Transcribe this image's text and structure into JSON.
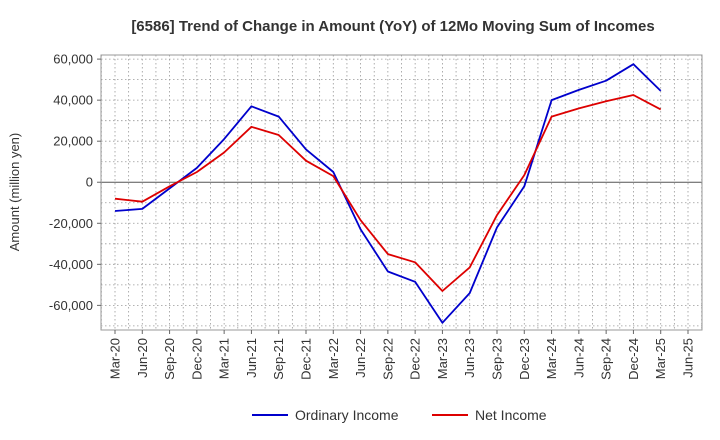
{
  "chart_data": {
    "type": "line",
    "title": "[6586]  Trend of Change in Amount (YoY) of 12Mo Moving Sum of Incomes",
    "ylabel": "Amount (million yen)",
    "xlabel": "",
    "ylim": [
      -72000,
      62000
    ],
    "yticks": [
      60000,
      40000,
      20000,
      0,
      -20000,
      -40000,
      -60000
    ],
    "ytick_labels": [
      "60,000",
      "40,000",
      "20,000",
      "0",
      "-20,000",
      "-40,000",
      "-60,000"
    ],
    "categories": [
      "Mar-20",
      "Jun-20",
      "Sep-20",
      "Dec-20",
      "Mar-21",
      "Jun-21",
      "Sep-21",
      "Dec-21",
      "Mar-22",
      "Jun-22",
      "Sep-22",
      "Dec-22",
      "Mar-23",
      "Jun-23",
      "Sep-23",
      "Dec-23",
      "Mar-24",
      "Jun-24",
      "Sep-24",
      "Dec-24",
      "Mar-25",
      "Jun-25"
    ],
    "grid": true,
    "legend_position": "bottom-center",
    "series": [
      {
        "name": "Ordinary Income",
        "color": "#0000cc",
        "values": [
          -14000,
          -13000,
          -3000,
          7000,
          21000,
          37000,
          32000,
          16000,
          5000,
          -23000,
          -43500,
          -48500,
          -68500,
          -54000,
          -22000,
          -2000,
          40000,
          45000,
          49500,
          57500,
          44500,
          null
        ]
      },
      {
        "name": "Net Income",
        "color": "#dd0000",
        "values": [
          -8000,
          -9500,
          -2000,
          5000,
          14500,
          27000,
          23000,
          10500,
          3000,
          -18500,
          -35000,
          -39000,
          -53000,
          -41500,
          -16000,
          3500,
          32000,
          36000,
          39500,
          42500,
          35500,
          null
        ]
      }
    ]
  }
}
